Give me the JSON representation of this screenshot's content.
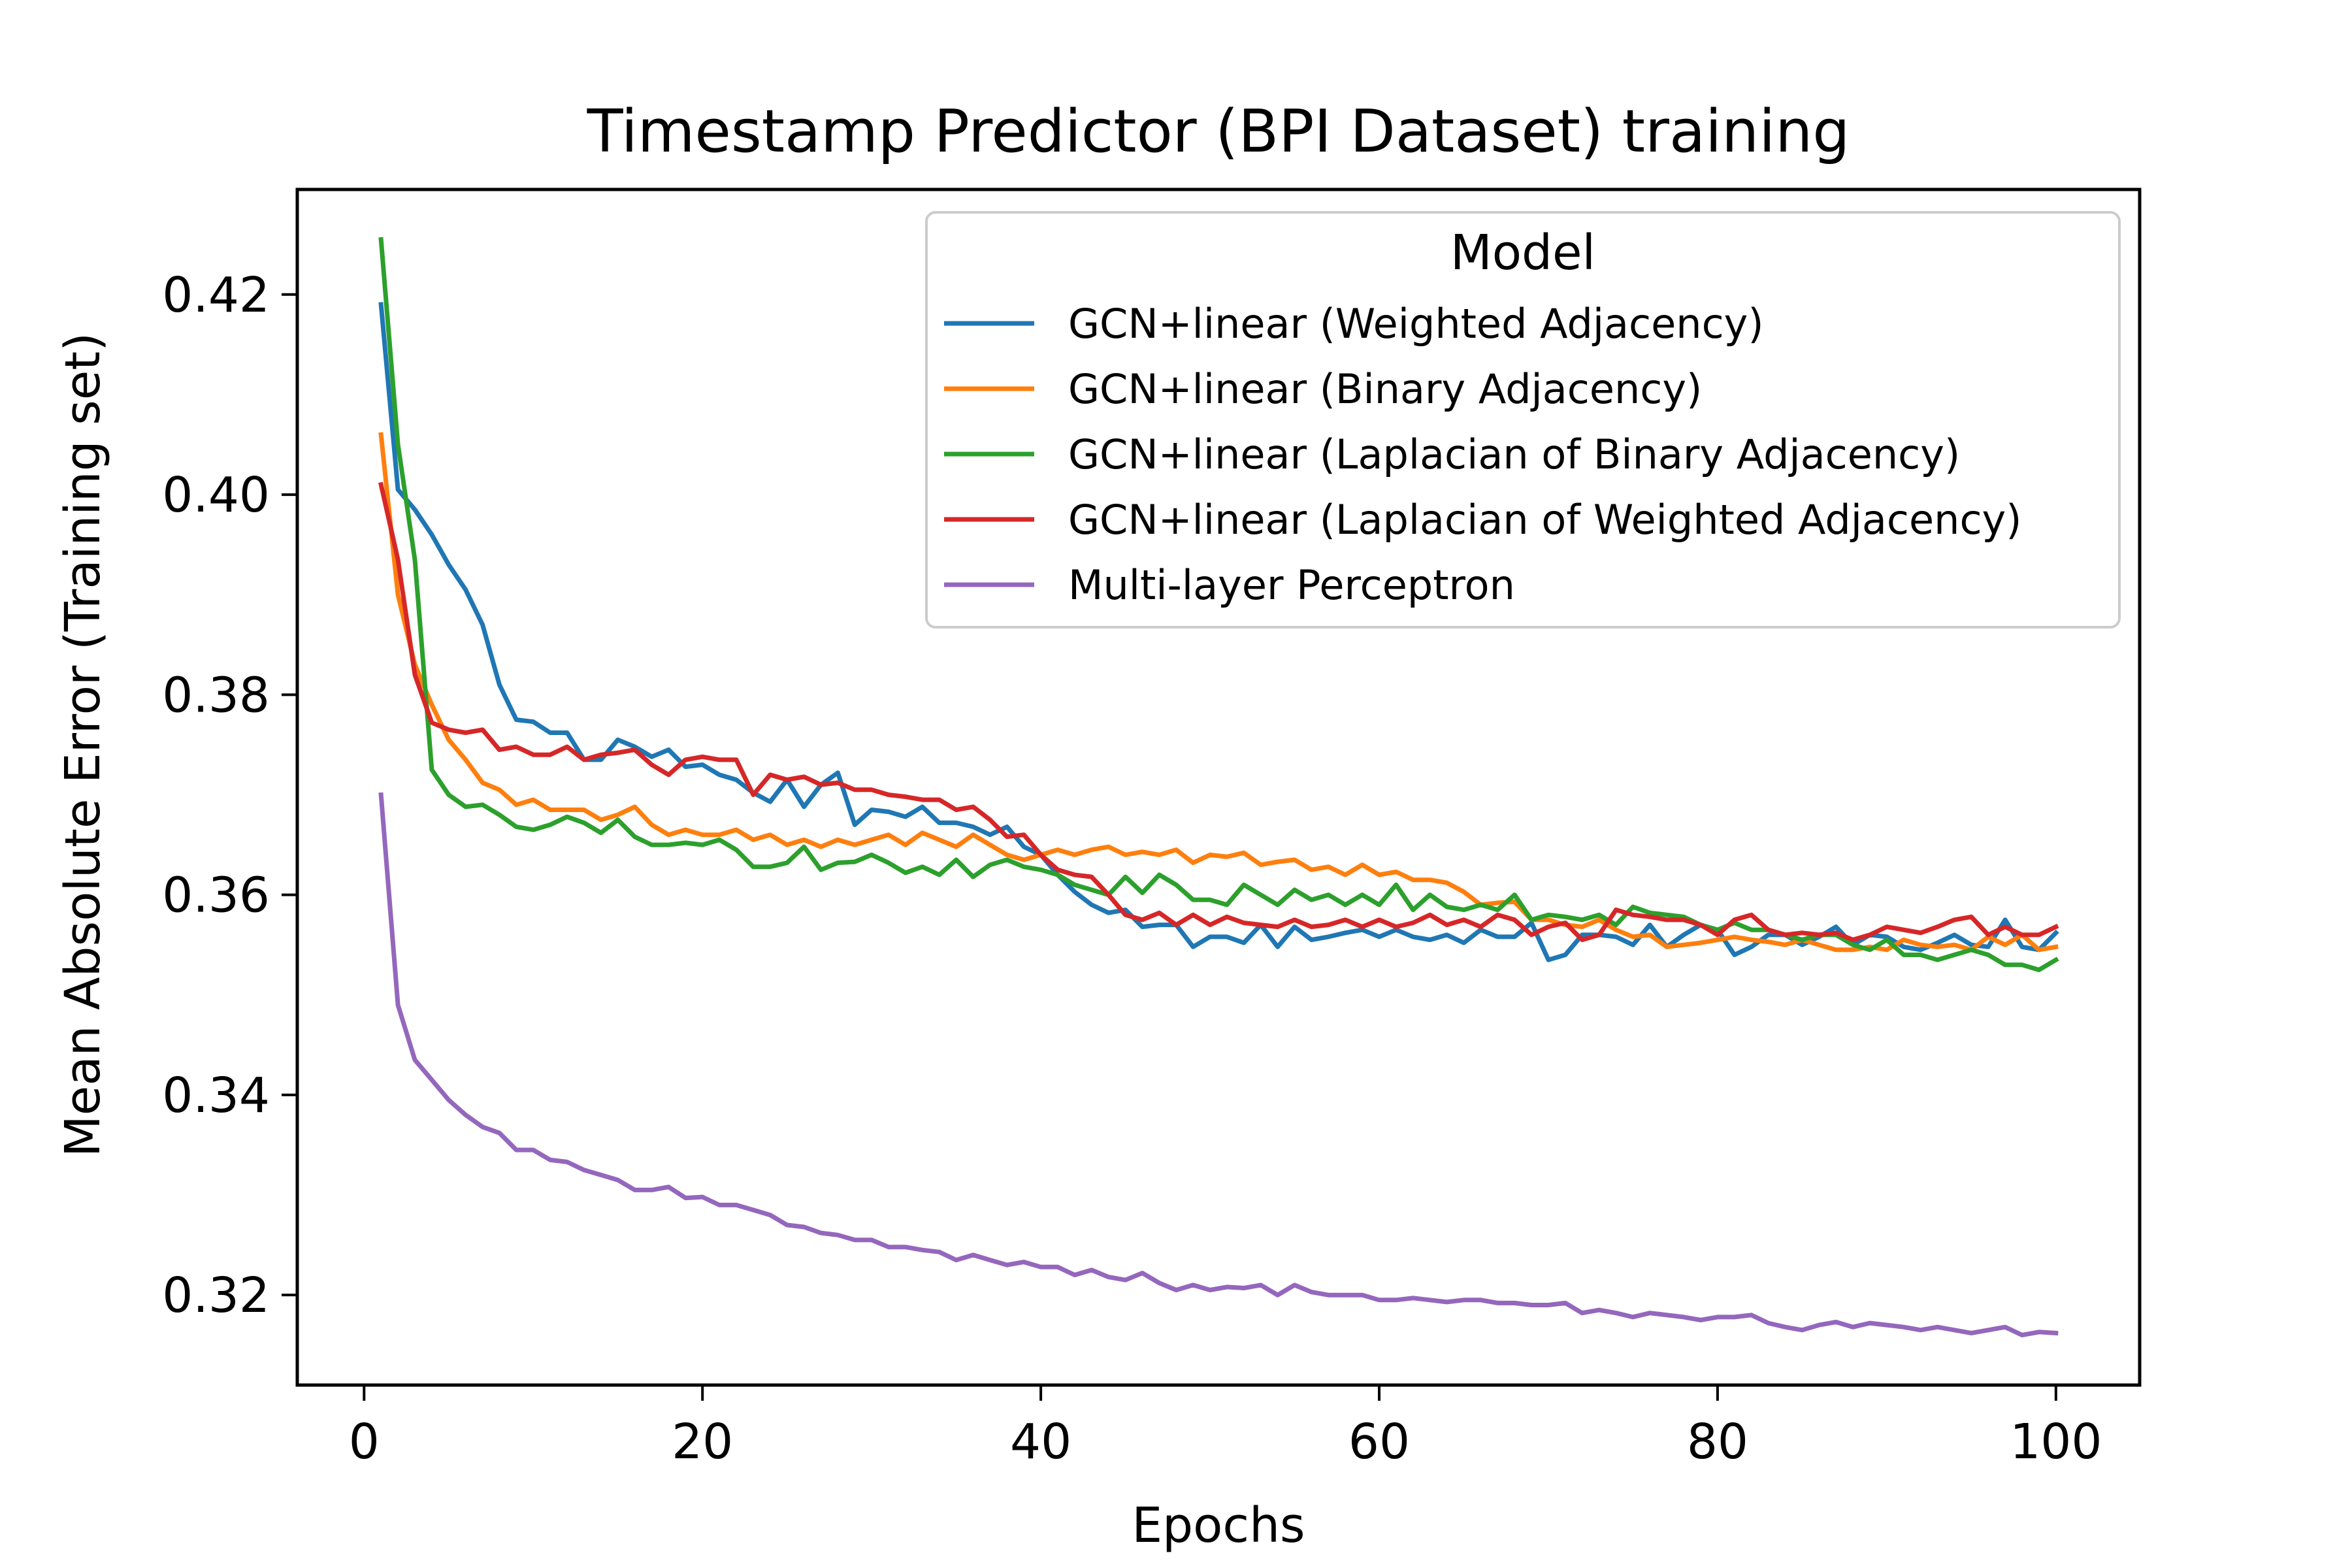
{
  "chart_data": {
    "type": "line",
    "title": "Timestamp Predictor (BPI Dataset) training",
    "xlabel": "Epochs",
    "ylabel": "Mean Absolute Error (Training set)",
    "xlim": [
      -3.95,
      104.95
    ],
    "ylim": [
      0.311,
      0.4305
    ],
    "xticks": [
      0,
      20,
      40,
      60,
      80,
      100
    ],
    "yticks": [
      0.32,
      0.34,
      0.36,
      0.38,
      0.4,
      0.42
    ],
    "xtick_labels": [
      "0",
      "20",
      "40",
      "60",
      "80",
      "100"
    ],
    "ytick_labels": [
      "0.32",
      "0.34",
      "0.36",
      "0.38",
      "0.40",
      "0.42"
    ],
    "grid": false,
    "legend": {
      "title": "Model",
      "placement": "top-right"
    },
    "x_start": 1,
    "series": [
      {
        "name": "GCN+linear (Weighted Adjacency)",
        "color": "#1f77b4",
        "values": [
          0.419,
          0.4005,
          0.3985,
          0.396,
          0.393,
          0.3905,
          0.387,
          0.381,
          0.3775,
          0.3773,
          0.3762,
          0.3762,
          0.3735,
          0.3735,
          0.3755,
          0.3748,
          0.3738,
          0.3745,
          0.3728,
          0.373,
          0.372,
          0.3715,
          0.3702,
          0.3693,
          0.3715,
          0.3688,
          0.371,
          0.3722,
          0.367,
          0.3685,
          0.3683,
          0.3678,
          0.3688,
          0.3672,
          0.3672,
          0.3668,
          0.366,
          0.3668,
          0.3648,
          0.364,
          0.362,
          0.3603,
          0.359,
          0.3582,
          0.3585,
          0.3568,
          0.357,
          0.357,
          0.3548,
          0.3558,
          0.3558,
          0.3552,
          0.357,
          0.3548,
          0.3568,
          0.3555,
          0.3558,
          0.3562,
          0.3565,
          0.3558,
          0.3565,
          0.3558,
          0.3555,
          0.356,
          0.3552,
          0.3565,
          0.3558,
          0.3558,
          0.3572,
          0.3535,
          0.354,
          0.356,
          0.356,
          0.3558,
          0.355,
          0.357,
          0.3548,
          0.356,
          0.357,
          0.3565,
          0.354,
          0.3548,
          0.356,
          0.356,
          0.355,
          0.3558,
          0.3568,
          0.355,
          0.356,
          0.3558,
          0.3548,
          0.3545,
          0.3552,
          0.356,
          0.355,
          0.3548,
          0.3575,
          0.3548,
          0.3545,
          0.3562
        ]
      },
      {
        "name": "GCN+linear (Binary Adjacency)",
        "color": "#ff7f0e",
        "values": [
          0.406,
          0.39,
          0.383,
          0.379,
          0.3755,
          0.3735,
          0.3712,
          0.3705,
          0.369,
          0.3695,
          0.3685,
          0.3685,
          0.3685,
          0.3675,
          0.368,
          0.3688,
          0.367,
          0.366,
          0.3665,
          0.366,
          0.366,
          0.3665,
          0.3655,
          0.366,
          0.365,
          0.3655,
          0.3648,
          0.3655,
          0.365,
          0.3655,
          0.366,
          0.365,
          0.3662,
          0.3655,
          0.3648,
          0.366,
          0.365,
          0.364,
          0.3635,
          0.364,
          0.3645,
          0.364,
          0.3645,
          0.3648,
          0.364,
          0.3643,
          0.364,
          0.3645,
          0.3632,
          0.364,
          0.3638,
          0.3642,
          0.363,
          0.3633,
          0.3635,
          0.3625,
          0.3628,
          0.362,
          0.363,
          0.362,
          0.3623,
          0.3615,
          0.3615,
          0.3612,
          0.3603,
          0.359,
          0.3592,
          0.3593,
          0.3575,
          0.3575,
          0.357,
          0.3568,
          0.3575,
          0.3565,
          0.3558,
          0.356,
          0.3548,
          0.355,
          0.3552,
          0.3555,
          0.3558,
          0.3555,
          0.3553,
          0.355,
          0.3555,
          0.355,
          0.3545,
          0.3545,
          0.3548,
          0.3545,
          0.3555,
          0.355,
          0.3548,
          0.355,
          0.3545,
          0.3558,
          0.355,
          0.356,
          0.3545,
          0.3548
        ]
      },
      {
        "name": "GCN+linear (Laplacian of Binary Adjacency)",
        "color": "#2ca02c",
        "values": [
          0.4255,
          0.405,
          0.3935,
          0.3725,
          0.37,
          0.3688,
          0.369,
          0.368,
          0.3668,
          0.3665,
          0.367,
          0.3678,
          0.3672,
          0.3662,
          0.3675,
          0.3658,
          0.365,
          0.365,
          0.3652,
          0.365,
          0.3655,
          0.3645,
          0.3628,
          0.3628,
          0.3632,
          0.3648,
          0.3625,
          0.3632,
          0.3633,
          0.364,
          0.3632,
          0.3622,
          0.3628,
          0.362,
          0.3635,
          0.3618,
          0.363,
          0.3635,
          0.3628,
          0.3625,
          0.362,
          0.361,
          0.3605,
          0.36,
          0.3618,
          0.3602,
          0.362,
          0.361,
          0.3595,
          0.3595,
          0.359,
          0.361,
          0.36,
          0.359,
          0.3605,
          0.3595,
          0.36,
          0.359,
          0.36,
          0.359,
          0.361,
          0.3585,
          0.36,
          0.3588,
          0.3585,
          0.359,
          0.3585,
          0.36,
          0.3575,
          0.358,
          0.3578,
          0.3575,
          0.358,
          0.357,
          0.3588,
          0.3582,
          0.358,
          0.3578,
          0.357,
          0.3565,
          0.3572,
          0.3565,
          0.3565,
          0.356,
          0.3555,
          0.356,
          0.356,
          0.355,
          0.3545,
          0.3555,
          0.354,
          0.354,
          0.3535,
          0.354,
          0.3545,
          0.354,
          0.353,
          0.353,
          0.3525,
          0.3535
        ]
      },
      {
        "name": "GCN+linear (Laplacian of Weighted Adjacency)",
        "color": "#d62728",
        "values": [
          0.401,
          0.3935,
          0.382,
          0.3772,
          0.3765,
          0.3762,
          0.3765,
          0.3745,
          0.3748,
          0.374,
          0.374,
          0.3748,
          0.3735,
          0.374,
          0.3742,
          0.3745,
          0.373,
          0.372,
          0.3735,
          0.3738,
          0.3735,
          0.3735,
          0.37,
          0.372,
          0.3715,
          0.3718,
          0.371,
          0.3712,
          0.3705,
          0.3705,
          0.37,
          0.3698,
          0.3695,
          0.3695,
          0.3685,
          0.3688,
          0.3675,
          0.3658,
          0.366,
          0.364,
          0.3625,
          0.362,
          0.3618,
          0.36,
          0.358,
          0.3575,
          0.3582,
          0.357,
          0.358,
          0.357,
          0.3578,
          0.3572,
          0.357,
          0.3568,
          0.3575,
          0.3568,
          0.357,
          0.3575,
          0.3568,
          0.3575,
          0.3568,
          0.3572,
          0.358,
          0.357,
          0.3575,
          0.3568,
          0.358,
          0.3575,
          0.356,
          0.3568,
          0.3572,
          0.3555,
          0.356,
          0.3585,
          0.358,
          0.3578,
          0.3575,
          0.3575,
          0.357,
          0.356,
          0.3575,
          0.358,
          0.3565,
          0.356,
          0.3562,
          0.356,
          0.3562,
          0.3555,
          0.356,
          0.3568,
          0.3565,
          0.3562,
          0.3568,
          0.3575,
          0.3578,
          0.356,
          0.3568,
          0.356,
          0.356,
          0.3568
        ]
      },
      {
        "name": "Multi-layer Perceptron",
        "color": "#9467bd",
        "values": [
          0.37,
          0.349,
          0.3435,
          0.3415,
          0.3395,
          0.338,
          0.3368,
          0.3362,
          0.3345,
          0.3345,
          0.3335,
          0.3333,
          0.3325,
          0.332,
          0.3315,
          0.3305,
          0.3305,
          0.3308,
          0.3297,
          0.3298,
          0.329,
          0.329,
          0.3285,
          0.328,
          0.327,
          0.3268,
          0.3262,
          0.326,
          0.3255,
          0.3255,
          0.3248,
          0.3248,
          0.3245,
          0.3243,
          0.3235,
          0.324,
          0.3235,
          0.323,
          0.3233,
          0.3228,
          0.3228,
          0.322,
          0.3225,
          0.3218,
          0.3215,
          0.3222,
          0.3212,
          0.3205,
          0.321,
          0.3205,
          0.3208,
          0.3207,
          0.321,
          0.32,
          0.321,
          0.3203,
          0.32,
          0.32,
          0.32,
          0.3195,
          0.3195,
          0.3197,
          0.3195,
          0.3193,
          0.3195,
          0.3195,
          0.3192,
          0.3192,
          0.319,
          0.319,
          0.3192,
          0.3182,
          0.3185,
          0.3182,
          0.3178,
          0.3182,
          0.318,
          0.3178,
          0.3175,
          0.3178,
          0.3178,
          0.318,
          0.3172,
          0.3168,
          0.3165,
          0.317,
          0.3173,
          0.3168,
          0.3172,
          0.317,
          0.3168,
          0.3165,
          0.3168,
          0.3165,
          0.3162,
          0.3165,
          0.3168,
          0.316,
          0.3163,
          0.3162
        ]
      }
    ]
  }
}
